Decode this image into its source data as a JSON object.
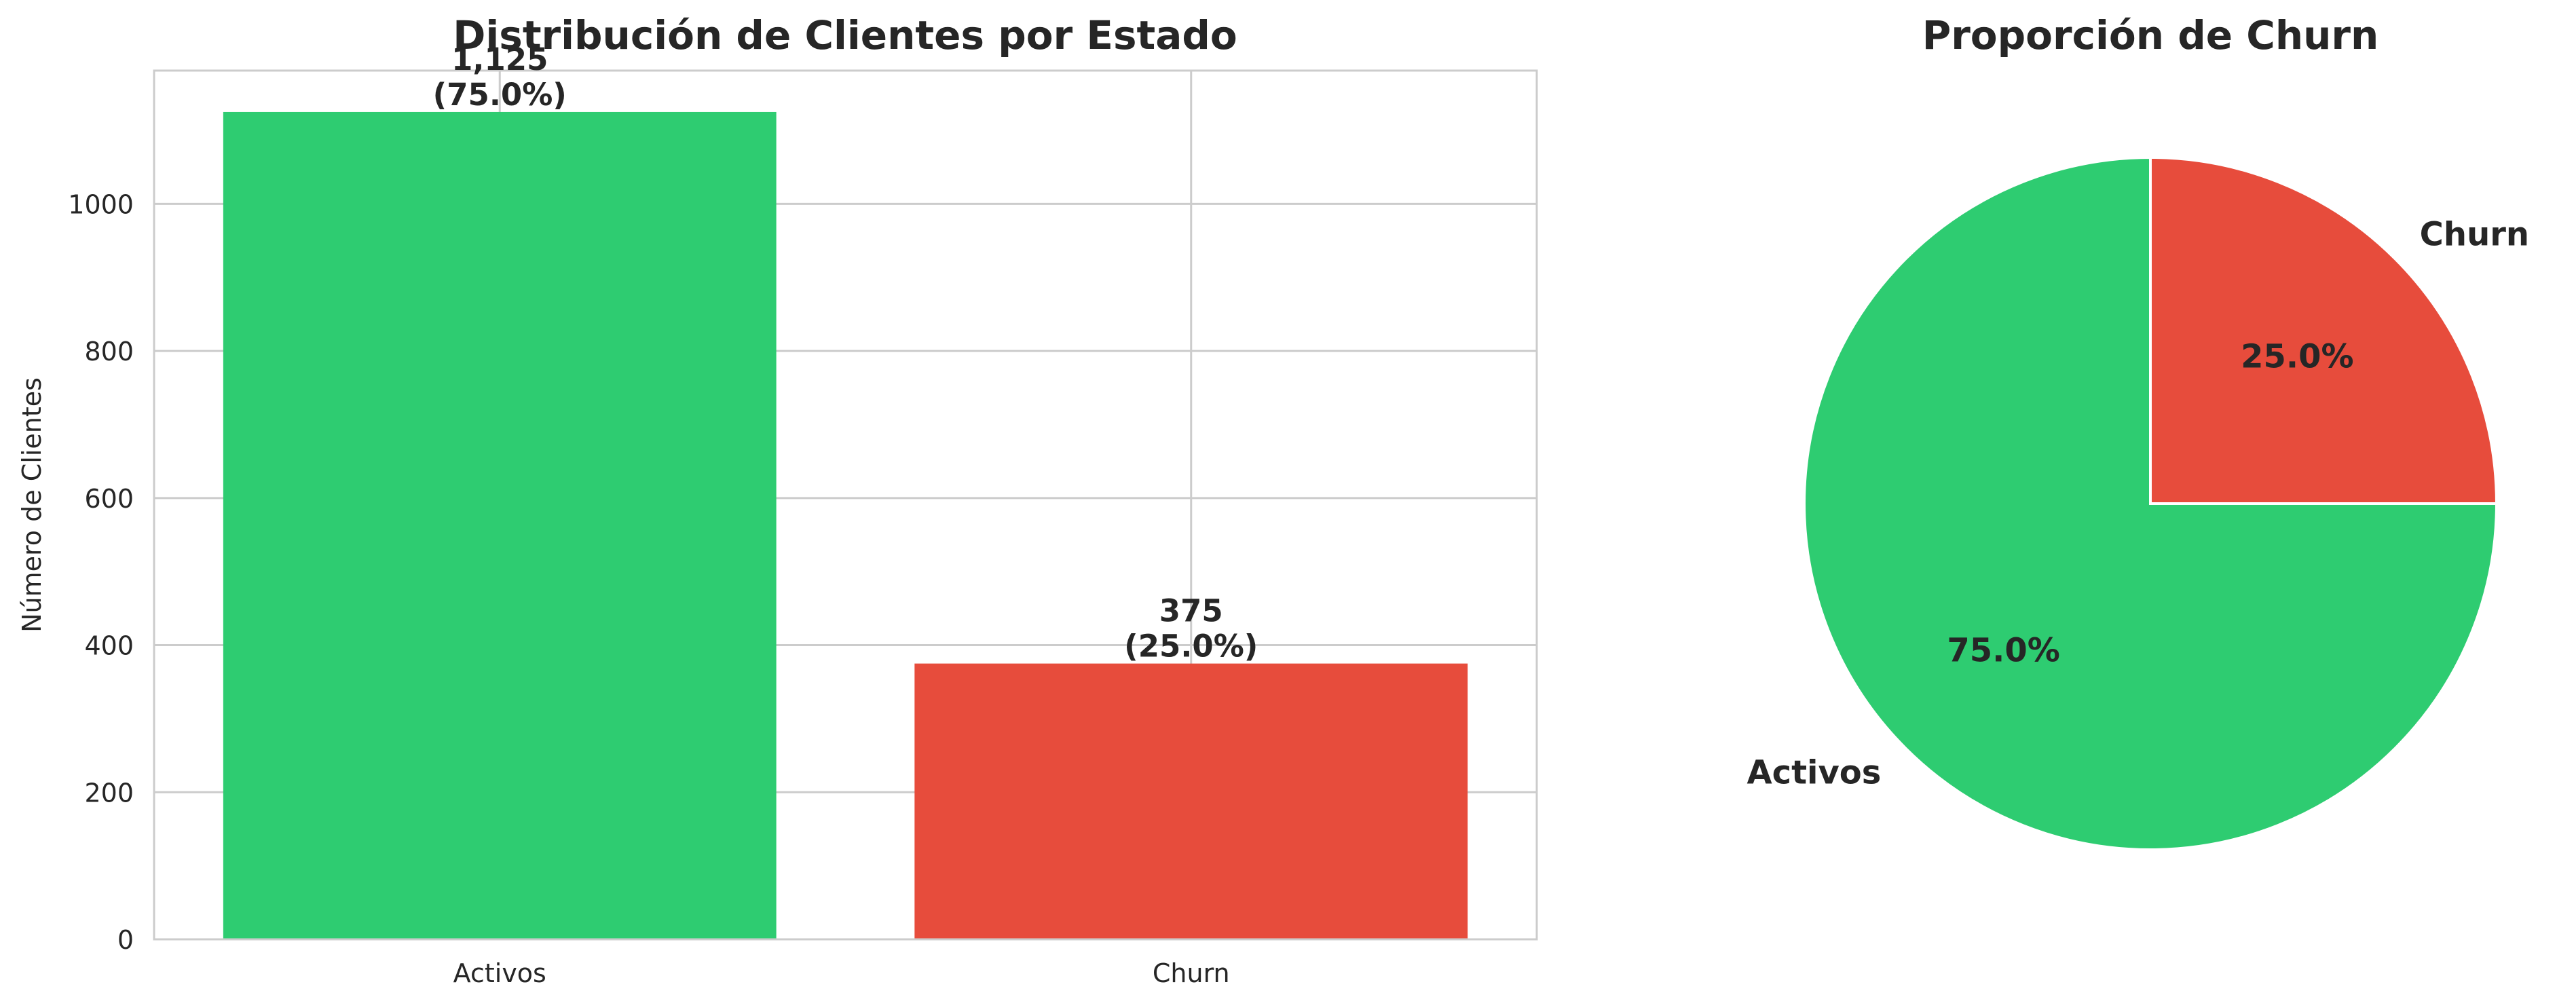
{
  "chart_data": [
    {
      "type": "bar",
      "title": "Distribución de Clientes por Estado",
      "xlabel": "",
      "ylabel": "Número de Clientes",
      "categories": [
        "Activos",
        "Churn"
      ],
      "values": [
        1125,
        375
      ],
      "data_labels": [
        "1,125\n(75.0%)",
        "375\n(25.0%)"
      ],
      "colors": [
        "#2ecc71",
        "#e74c3c"
      ],
      "ylim": [
        0,
        1181.25
      ],
      "yticks": [
        0,
        200,
        400,
        600,
        800,
        1000
      ],
      "grid": true
    },
    {
      "type": "pie",
      "title": "Proporción de Churn",
      "labels": [
        "Activos",
        "Churn"
      ],
      "values": [
        75.0,
        25.0
      ],
      "pct_labels": [
        "75.0%",
        "25.0%"
      ],
      "colors": [
        "#2ecc71",
        "#e74c3c"
      ],
      "start_angle": 90,
      "direction": "counterclockwise"
    }
  ]
}
